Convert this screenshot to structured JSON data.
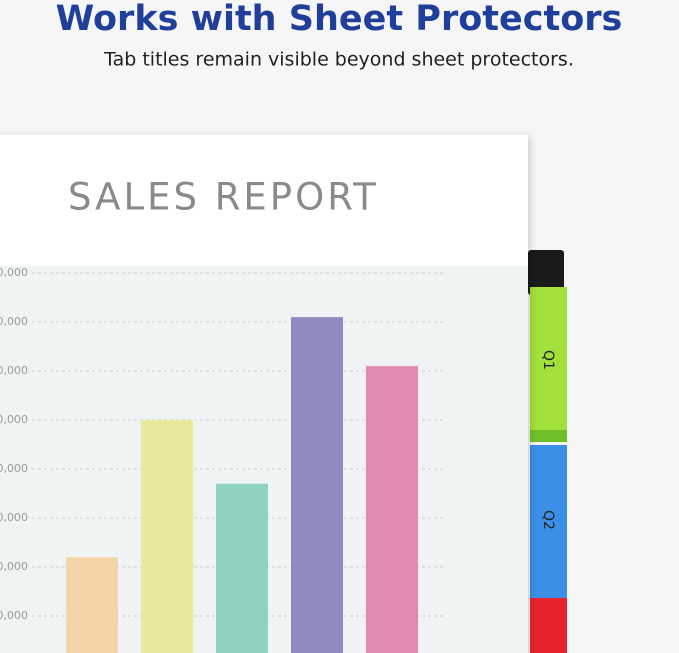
{
  "header": {
    "title": "Works with Sheet Protectors",
    "subtitle": "Tab titles remain visible beyond sheet protectors."
  },
  "chart_data": {
    "type": "bar",
    "title": "SALES REPORT",
    "categories": [
      null,
      null,
      null,
      null,
      null
    ],
    "values": [
      2.2,
      5.0,
      3.7,
      7.1,
      6.1
    ],
    "colors": [
      "#f5d3a9",
      "#eae89a",
      "#90d2c0",
      "#8f8abf",
      "#e28bb0"
    ],
    "ylim": [
      0,
      8.16
    ],
    "yticks": [
      {
        "value": 1,
        "label": "0,000"
      },
      {
        "value": 2,
        "label": "0,000"
      },
      {
        "value": 3,
        "label": "0,000"
      },
      {
        "value": 4,
        "label": "0,000"
      },
      {
        "value": 5,
        "label": "0,000"
      },
      {
        "value": 6,
        "label": "0,000"
      },
      {
        "value": 7,
        "label": "0,000"
      },
      {
        "value": 8,
        "label": "0,000"
      }
    ],
    "grid": true
  },
  "tabs": [
    "Q1",
    "Q2"
  ]
}
